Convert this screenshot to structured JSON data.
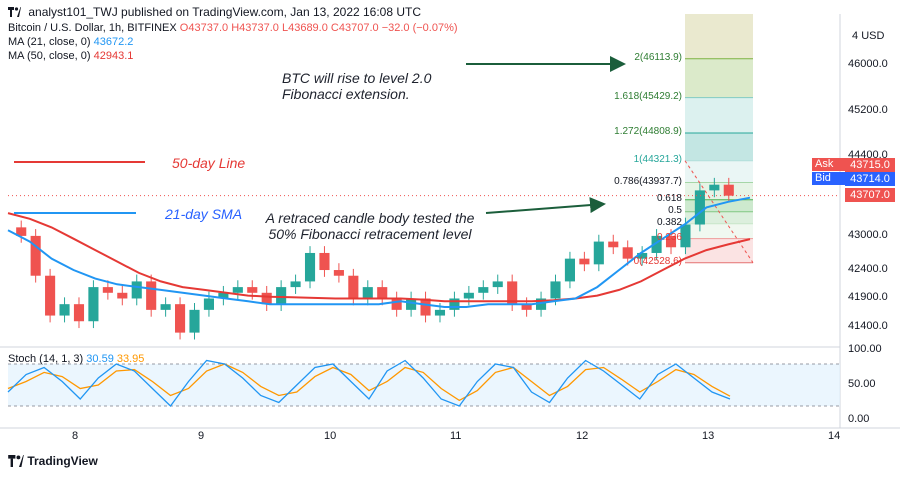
{
  "header": {
    "published": "analyst101_TWJ published on TradingView.com, Jan 13, 2022 16:08 UTC"
  },
  "legend": {
    "symbol": "Bitcoin / U.S. Dollar, 1h, BITFINEX",
    "open": "O43737.0",
    "high": "H43737.0",
    "low": "L43689.0",
    "close": "C43707.0",
    "change": "−32.0 (−0.07%)",
    "ma21_label": "MA (21, close, 0)",
    "ma21_value": "43672.2",
    "ma50_label": "MA (50, close, 0)",
    "ma50_value": "42943.1"
  },
  "stoch": {
    "label": "Stoch (14, 1, 3)",
    "k_value": "30.59",
    "d_value": "33.95"
  },
  "annotations": {
    "fib_ext": "BTC will rise to  level 2.0 Fibonacci extension.",
    "retrace": "A retraced candle body tested the 50% Fibonacci retracement level",
    "line50": "50-day Line",
    "sma21": "21-day SMA"
  },
  "price_axis": {
    "currency": "USD",
    "ticks": [
      "46000.0",
      "45200.0",
      "44400.0",
      "43000.0",
      "42400.0",
      "41900.0",
      "41400.0"
    ],
    "ask_label": "Ask",
    "ask_value": "43715.0",
    "bid_label": "Bid",
    "bid_value": "43714.0",
    "last_value": "43707.0"
  },
  "stoch_axis": {
    "ticks": [
      "100.00",
      "50.00",
      "0.00"
    ]
  },
  "footer": {
    "brand": "TradingView"
  },
  "colors": {
    "up": "#26a69a",
    "down": "#ef5350",
    "ma21": "#2196f3",
    "ma50": "#e53935",
    "stoch_k": "#2196f3",
    "stoch_d": "#ff9800"
  },
  "chart_data": [
    {
      "type": "candlestick",
      "title": "Bitcoin / U.S. Dollar, 1h, BITFINEX",
      "x_ticks": [
        "8",
        "9",
        "10",
        "11",
        "12",
        "13",
        "14"
      ],
      "ylim": [
        41100,
        46900
      ],
      "fibonacci": [
        {
          "level": "2",
          "price": 46113.9
        },
        {
          "level": "1.618",
          "price": 45429.2
        },
        {
          "level": "1.272",
          "price": 44808.9
        },
        {
          "level": "1",
          "price": 44321.3
        },
        {
          "level": "0.786",
          "price": 43937.7
        },
        {
          "level": "0.618",
          "price": 43636.0
        },
        {
          "level": "0.5",
          "price": 43425.0
        },
        {
          "level": "0.382",
          "price": 43213.4
        },
        {
          "level": "0.236",
          "price": 42951.7
        },
        {
          "level": "0",
          "price": 42528.6
        }
      ],
      "fib_labels": [
        "2(46113.9)",
        "1.618(45429.2)",
        "1.272(44808.9)",
        "1(44321.3)",
        "0.786(43937.7)",
        "0.618",
        "0.5",
        "0.382",
        "0.236",
        "0(42528.6)"
      ],
      "ma21": [
        43100,
        42900,
        42600,
        42400,
        42250,
        42150,
        42100,
        42050,
        42000,
        41950,
        41900,
        41850,
        41800,
        41800,
        41800,
        41800,
        41800,
        41800,
        41850,
        41800,
        41750,
        41750,
        41800,
        41800,
        41800,
        41850,
        41900,
        42100,
        42400,
        42700,
        42950,
        43200,
        43500,
        43600,
        43672
      ],
      "ma50": [
        43400,
        43300,
        43150,
        42950,
        42750,
        42550,
        42350,
        42200,
        42100,
        42050,
        42000,
        41950,
        41930,
        41920,
        41910,
        41900,
        41900,
        41900,
        41900,
        41880,
        41850,
        41850,
        41850,
        41850,
        41850,
        41870,
        41900,
        41950,
        42050,
        42200,
        42400,
        42600,
        42750,
        42850,
        42943
      ],
      "closes": [
        43000,
        42300,
        41600,
        41800,
        41500,
        42100,
        42000,
        41900,
        42200,
        41700,
        41800,
        41300,
        41700,
        41900,
        42000,
        42100,
        42000,
        41800,
        42100,
        42200,
        42700,
        42400,
        42300,
        41900,
        42100,
        41900,
        41700,
        41900,
        41600,
        41700,
        41900,
        42000,
        42100,
        42200,
        41800,
        41700,
        41900,
        42200,
        42600,
        42500,
        42900,
        42800,
        42600,
        42700,
        43000,
        42800,
        43200,
        43800,
        43900,
        43707
      ]
    },
    {
      "type": "line",
      "title": "Stoch (14, 1, 3)",
      "ylim": [
        0,
        100
      ],
      "series": [
        {
          "name": "%K",
          "values": [
            40,
            65,
            75,
            55,
            30,
            60,
            80,
            70,
            45,
            20,
            55,
            85,
            80,
            60,
            35,
            25,
            50,
            75,
            80,
            55,
            30,
            70,
            85,
            60,
            30,
            20,
            55,
            80,
            75,
            40,
            25,
            60,
            85,
            70,
            50,
            30,
            65,
            80,
            60,
            40,
            30
          ]
        },
        {
          "name": "%D",
          "values": [
            45,
            55,
            68,
            62,
            45,
            50,
            70,
            72,
            55,
            35,
            45,
            70,
            80,
            68,
            48,
            35,
            40,
            62,
            75,
            65,
            42,
            55,
            75,
            68,
            45,
            28,
            42,
            68,
            75,
            55,
            35,
            48,
            72,
            75,
            58,
            40,
            55,
            72,
            65,
            48,
            34
          ]
        }
      ]
    }
  ]
}
